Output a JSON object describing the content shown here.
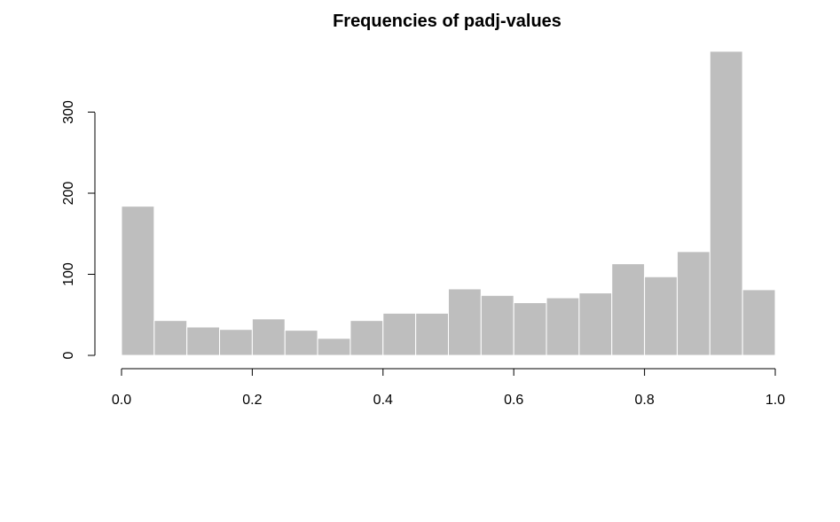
{
  "chart_data": {
    "type": "bar",
    "subtype": "histogram",
    "title": "Frequencies of padj-values",
    "xlabel": "",
    "ylabel": "",
    "bin_edges": [
      0.0,
      0.05,
      0.1,
      0.15,
      0.2,
      0.25,
      0.3,
      0.35,
      0.4,
      0.45,
      0.5,
      0.55,
      0.6,
      0.65,
      0.7,
      0.75,
      0.8,
      0.85,
      0.9,
      0.95,
      1.0
    ],
    "values": [
      184,
      43,
      35,
      32,
      45,
      31,
      21,
      43,
      52,
      52,
      82,
      74,
      65,
      71,
      77,
      113,
      97,
      128,
      375,
      81
    ],
    "xlim": [
      0,
      1
    ],
    "ylim": [
      0,
      375
    ],
    "xticks": [
      "0.0",
      "0.2",
      "0.4",
      "0.6",
      "0.8",
      "1.0"
    ],
    "yticks": [
      "0",
      "100",
      "200",
      "300"
    ],
    "grid": false,
    "legend": "none",
    "colors": {
      "bar_fill": "#bebebe",
      "bar_border": "#ffffff",
      "axis": "#000000",
      "background": "#ffffff"
    }
  }
}
